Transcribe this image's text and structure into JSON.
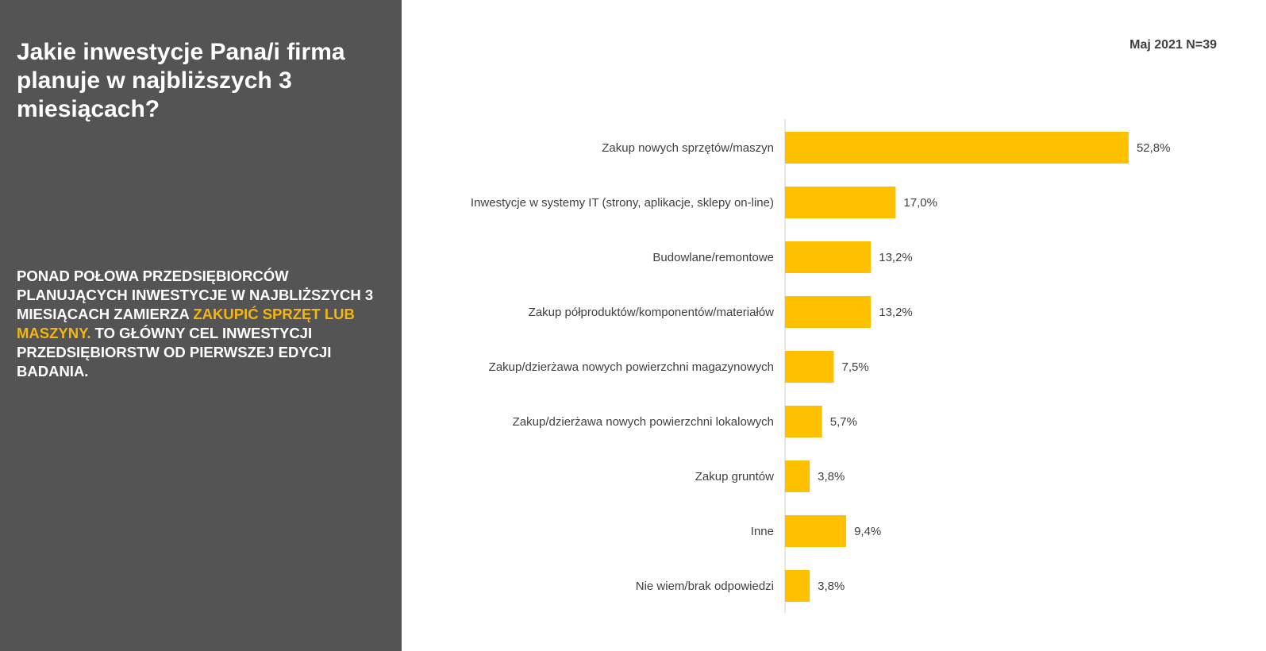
{
  "panel": {
    "title": "Jakie inwestycje Pana/i firma planuje w najbliższych 3 miesiącach?",
    "summary_before": "PONAD POŁOWA PRZEDSIĘBIORCÓW PLANUJĄCYCH INWESTYCJE W NAJBLIŻSZYCH 3 MIESIĄCACH ZAMIERZA ",
    "summary_highlight": "ZAKUPIĆ SPRZĘT LUB MASZYNY.",
    "summary_after": " TO GŁÓWNY CEL INWESTYCJI PRZEDSIĘBIORSTW OD PIERWSZEJ EDYCJI BADANIA."
  },
  "sample_info": "Maj 2021 N=39",
  "colors": {
    "panel_bg": "#545454",
    "bar": "#ffc000",
    "highlight": "#f5b70e",
    "text": "#404040"
  },
  "chart_data": {
    "type": "bar",
    "orientation": "horizontal",
    "categories": [
      "Zakup nowych sprzętów/maszyn",
      "Inwestycje w systemy IT (strony, aplikacje, sklepy on-line)",
      "Budowlane/remontowe",
      "Zakup półproduktów/komponentów/materiałów",
      "Zakup/dzierżawa nowych powierzchni magazynowych",
      "Zakup/dzierżawa nowych powierzchni lokalowych",
      "Zakup gruntów",
      "Inne",
      "Nie wiem/brak odpowiedzi"
    ],
    "values": [
      52.8,
      17.0,
      13.2,
      13.2,
      7.5,
      5.7,
      3.8,
      9.4,
      3.8
    ],
    "value_labels": [
      "52,8%",
      "17,0%",
      "13,2%",
      "13,2%",
      "7,5%",
      "5,7%",
      "3,8%",
      "9,4%",
      "3,8%"
    ],
    "xlim": [
      0,
      55
    ],
    "grid": false,
    "legend": "none"
  }
}
